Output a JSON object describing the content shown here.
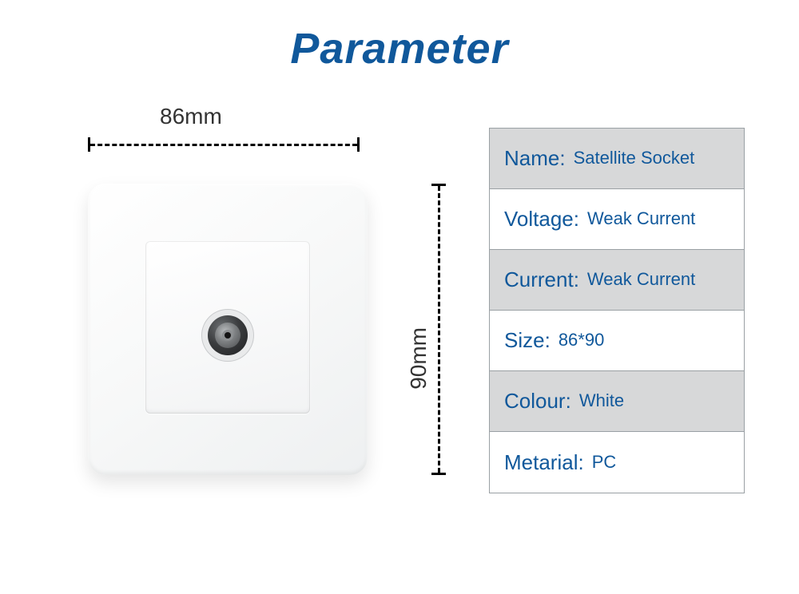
{
  "title": {
    "text": "Parameter",
    "color": "#10589b"
  },
  "diagram": {
    "width_label": "86mm",
    "height_label": "90mm"
  },
  "table": {
    "border_color": "#9aa0a4",
    "shade_color": "#d7d8d9",
    "key_color": "#10589b",
    "val_color": "#10589b",
    "rows": [
      {
        "key": "Name:",
        "val": "Satellite Socket",
        "shaded": true
      },
      {
        "key": "Voltage:",
        "val": "Weak Current",
        "shaded": false
      },
      {
        "key": "Current:",
        "val": "Weak Current",
        "shaded": true
      },
      {
        "key": "Size:",
        "val": "86*90",
        "shaded": false
      },
      {
        "key": "Colour:",
        "val": "White",
        "shaded": true
      },
      {
        "key": "Metarial:",
        "val": "PC",
        "shaded": false
      }
    ]
  }
}
